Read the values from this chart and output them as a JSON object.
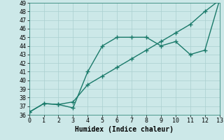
{
  "line1_x": [
    0,
    1,
    2,
    3,
    4,
    5,
    6,
    7,
    8,
    9,
    10,
    11,
    12,
    13
  ],
  "line1_y": [
    36.3,
    37.3,
    37.2,
    37.5,
    39.5,
    40.5,
    41.5,
    42.5,
    43.5,
    44.5,
    45.5,
    46.5,
    48.0,
    49.3
  ],
  "line2_x": [
    0,
    1,
    2,
    3,
    4,
    5,
    6,
    7,
    8,
    9,
    10,
    11,
    12,
    13
  ],
  "line2_y": [
    36.3,
    37.3,
    37.2,
    36.8,
    41.0,
    44.0,
    45.0,
    45.0,
    45.0,
    44.0,
    44.5,
    43.0,
    43.5,
    49.3
  ],
  "line_color": "#1a7a6a",
  "bg_color": "#cce8e8",
  "grid_color": "#aacfcf",
  "xlabel": "Humidex (Indice chaleur)",
  "xlim": [
    0,
    13
  ],
  "ylim": [
    36,
    49
  ],
  "xticks": [
    0,
    1,
    2,
    3,
    4,
    5,
    6,
    7,
    8,
    9,
    10,
    11,
    12,
    13
  ],
  "yticks": [
    36,
    37,
    38,
    39,
    40,
    41,
    42,
    43,
    44,
    45,
    46,
    47,
    48,
    49
  ],
  "xlabel_fontsize": 7,
  "tick_fontsize": 6,
  "linewidth": 1.0,
  "markersize": 4,
  "marker_ew": 1.0
}
